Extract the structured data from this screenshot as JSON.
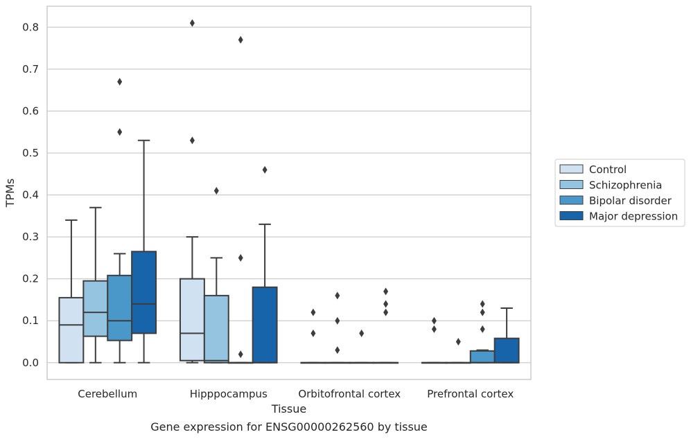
{
  "chart_data": {
    "type": "box",
    "xlabel": "Tissue",
    "ylabel": "TPMs",
    "caption": "Gene expression for ENSG00000262560 by tissue",
    "ylim": [
      -0.04,
      0.85
    ],
    "yticks": [
      "0.0",
      "0.1",
      "0.2",
      "0.3",
      "0.4",
      "0.5",
      "0.6",
      "0.7",
      "0.8"
    ],
    "grid": "horizontal",
    "legend_position": "outside right",
    "categories": [
      "Cerebellum",
      "Hipppocampus",
      "Orbitofrontal cortex",
      "Prefrontal cortex"
    ],
    "series": [
      {
        "name": "Control",
        "color": "#d0e1f2",
        "boxes": [
          {
            "min": 0.0,
            "q1": 0.0,
            "median": 0.09,
            "q3": 0.155,
            "max": 0.34,
            "outliers": []
          },
          {
            "min": 0.0,
            "q1": 0.005,
            "median": 0.07,
            "q3": 0.2,
            "max": 0.3,
            "outliers": [
              0.53,
              0.81
            ]
          },
          {
            "min": 0.0,
            "q1": 0.0,
            "median": 0.0,
            "q3": 0.0,
            "max": 0.0,
            "outliers": [
              0.07,
              0.12
            ]
          },
          {
            "min": 0.0,
            "q1": 0.0,
            "median": 0.0,
            "q3": 0.0,
            "max": 0.0,
            "outliers": [
              0.08,
              0.1
            ]
          }
        ]
      },
      {
        "name": "Schizophrenia",
        "color": "#94c4df",
        "boxes": [
          {
            "min": 0.0,
            "q1": 0.063,
            "median": 0.12,
            "q3": 0.195,
            "max": 0.37,
            "outliers": []
          },
          {
            "min": 0.0,
            "q1": 0.0,
            "median": 0.005,
            "q3": 0.16,
            "max": 0.25,
            "outliers": [
              0.41
            ]
          },
          {
            "min": 0.0,
            "q1": 0.0,
            "median": 0.0,
            "q3": 0.0,
            "max": 0.0,
            "outliers": [
              0.03,
              0.1,
              0.16
            ]
          },
          {
            "min": 0.0,
            "q1": 0.0,
            "median": 0.0,
            "q3": 0.0,
            "max": 0.0,
            "outliers": [
              0.05
            ]
          }
        ]
      },
      {
        "name": "Bipolar disorder",
        "color": "#4a98c9",
        "boxes": [
          {
            "min": 0.0,
            "q1": 0.053,
            "median": 0.1,
            "q3": 0.208,
            "max": 0.26,
            "outliers": [
              0.55,
              0.67
            ]
          },
          {
            "min": 0.0,
            "q1": 0.0,
            "median": 0.0,
            "q3": 0.0,
            "max": 0.0,
            "outliers": [
              0.02,
              0.25,
              0.77
            ]
          },
          {
            "min": 0.0,
            "q1": 0.0,
            "median": 0.0,
            "q3": 0.0,
            "max": 0.0,
            "outliers": [
              0.07
            ]
          },
          {
            "min": 0.0,
            "q1": 0.0,
            "median": 0.0,
            "q3": 0.028,
            "max": 0.03,
            "outliers": [
              0.08,
              0.12,
              0.14
            ]
          }
        ]
      },
      {
        "name": "Major depression",
        "color": "#1764ab",
        "boxes": [
          {
            "min": 0.0,
            "q1": 0.07,
            "median": 0.14,
            "q3": 0.265,
            "max": 0.53,
            "outliers": []
          },
          {
            "min": 0.0,
            "q1": 0.0,
            "median": 0.0,
            "q3": 0.18,
            "max": 0.33,
            "outliers": [
              0.46
            ]
          },
          {
            "min": 0.0,
            "q1": 0.0,
            "median": 0.0,
            "q3": 0.0,
            "max": 0.0,
            "outliers": [
              0.12,
              0.14,
              0.17
            ]
          },
          {
            "min": 0.0,
            "q1": 0.0,
            "median": 0.0,
            "q3": 0.058,
            "max": 0.13,
            "outliers": []
          }
        ]
      }
    ]
  }
}
